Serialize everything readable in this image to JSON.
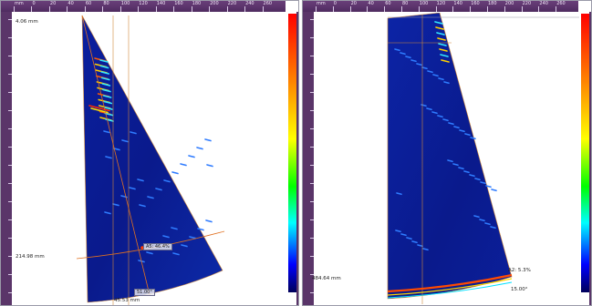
{
  "left_panel": {
    "depth_top": "4.06 mm",
    "depth_bottom": "214.98 mm",
    "cursor_label": "A5: 46.4%",
    "angle_label": "51.00°",
    "position_readout": "45.53 mm",
    "ruler_top_labels": [
      "mm",
      "0",
      "20",
      "40",
      "60",
      "80",
      "100",
      "120",
      "140",
      "160",
      "180",
      "200",
      "220",
      "240",
      "260"
    ]
  },
  "right_panel": {
    "depth_bottom": "484.64 mm",
    "amplitude_label": "A2: 5.3%",
    "angle_label": "15.00°",
    "ruler_top_labels": [
      "mm",
      "0",
      "20",
      "40",
      "60",
      "80",
      "100",
      "120",
      "140",
      "160",
      "180",
      "200",
      "220",
      "240",
      "260"
    ]
  },
  "colors": {
    "ruler": "#5a3569",
    "background_scan": "#0a1a8c",
    "cursor_line": "#e07020"
  }
}
